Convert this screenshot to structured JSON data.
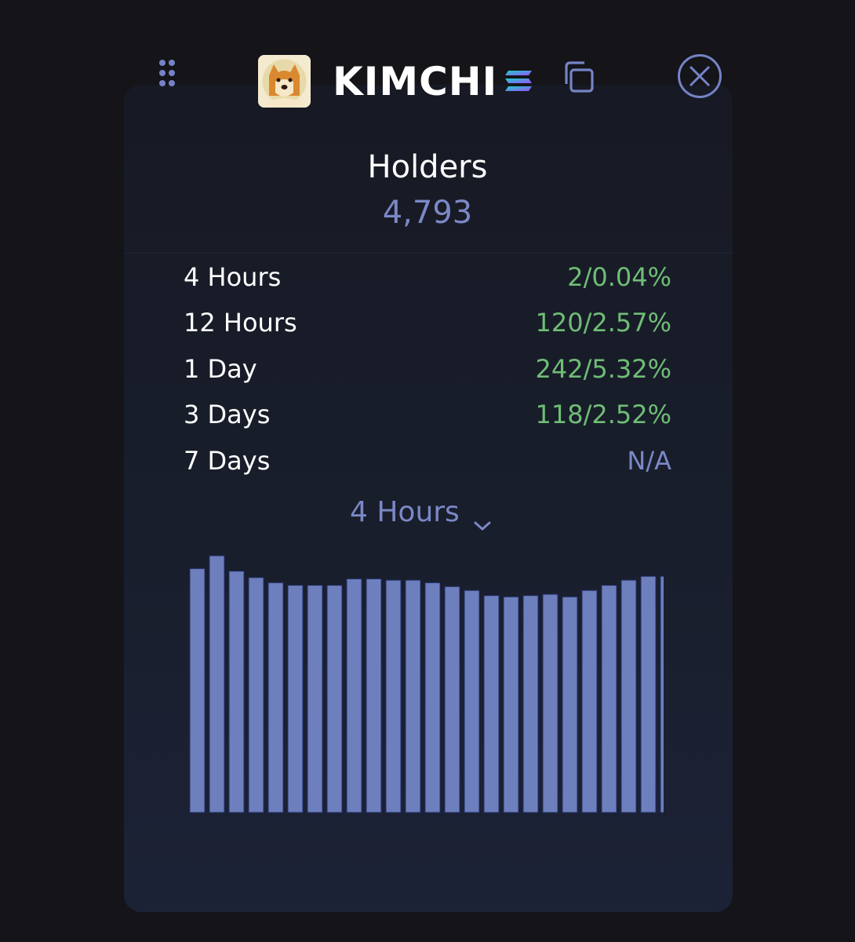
{
  "header": {
    "token_name": "KIMCHI",
    "icons": {
      "drag": "drag-handle-icon",
      "chain": "solana-icon",
      "copy": "copy-icon",
      "close": "close-circle-icon"
    }
  },
  "holders": {
    "title": "Holders",
    "count": "4,793"
  },
  "stats": [
    {
      "label": "4 Hours",
      "value": "2/0.04%",
      "status": "positive"
    },
    {
      "label": "12 Hours",
      "value": "120/2.57%",
      "status": "positive"
    },
    {
      "label": "1 Day",
      "value": "242/5.32%",
      "status": "positive"
    },
    {
      "label": "3 Days",
      "value": "118/2.52%",
      "status": "positive"
    },
    {
      "label": "7 Days",
      "value": "N/A",
      "status": "na"
    }
  ],
  "period_select": {
    "selected": "4 Hours"
  },
  "colors": {
    "accent": "#7b88c6",
    "positive": "#6fbd76",
    "bar": "#6d7fbd",
    "background": "#141419",
    "card": "#1a1f2e"
  },
  "chart_data": {
    "type": "bar",
    "values": [
      0.95,
      1.0,
      0.94,
      0.915,
      0.895,
      0.885,
      0.885,
      0.885,
      0.91,
      0.91,
      0.905,
      0.905,
      0.895,
      0.88,
      0.865,
      0.845,
      0.84,
      0.845,
      0.85,
      0.84,
      0.865,
      0.885,
      0.905,
      0.92,
      0.92
    ],
    "ylim": [
      0,
      1.0
    ],
    "grid": false,
    "title": "",
    "xlabel": "",
    "ylabel": ""
  }
}
